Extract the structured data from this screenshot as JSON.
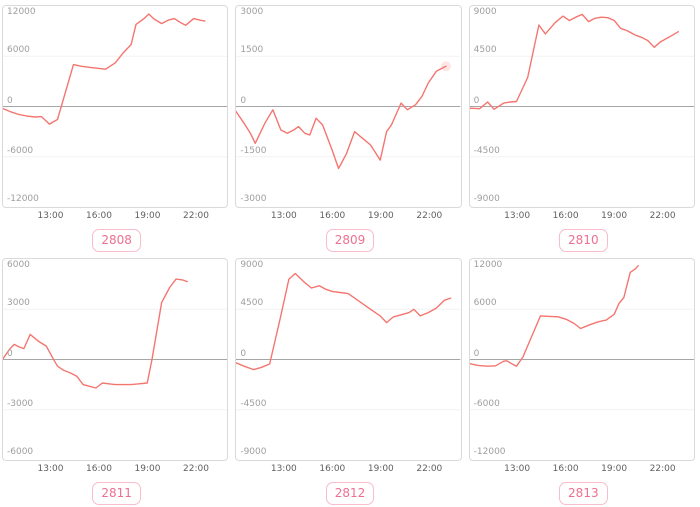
{
  "page": {
    "background": "#ffffff"
  },
  "style": {
    "line_color": "#f4756f",
    "grid_light": "#f2f2f2",
    "zero_line": "#a6a6a6",
    "box_border": "#dadada",
    "y_tick_color": "#9e9e9e",
    "x_tick_color": "#5f5f5f",
    "badge_text": "#ee7090",
    "badge_border": "#f8bcca"
  },
  "x_axis": {
    "range_hours": [
      10,
      24
    ],
    "tick_hours": [
      13,
      16,
      19,
      22
    ],
    "tick_labels": [
      "13:00",
      "16:00",
      "19:00",
      "22:00"
    ]
  },
  "chart_data": [
    {
      "type": "line",
      "label": "2808",
      "ylim": [
        -12000,
        12000
      ],
      "y_ticks": [
        12000,
        6000,
        0,
        -6000,
        -12000
      ],
      "x_ticks": [
        "13:00",
        "16:00",
        "19:00",
        "22:00"
      ],
      "grid": "horizontal-only",
      "legend": "none",
      "end_marker": false,
      "series": [
        {
          "name": "value",
          "points_hour_value": [
            [
              10,
              -250
            ],
            [
              10.5,
              -650
            ],
            [
              11,
              -950
            ],
            [
              11.5,
              -1150
            ],
            [
              12,
              -1250
            ],
            [
              12.4,
              -1200
            ],
            [
              12.9,
              -2100
            ],
            [
              13.4,
              -1550
            ],
            [
              14.4,
              5000
            ],
            [
              14.9,
              4800
            ],
            [
              15.5,
              4650
            ],
            [
              16,
              4550
            ],
            [
              16.4,
              4450
            ],
            [
              17,
              5200
            ],
            [
              17.5,
              6400
            ],
            [
              18,
              7400
            ],
            [
              18.3,
              9800
            ],
            [
              18.8,
              10500
            ],
            [
              19.1,
              11050
            ],
            [
              19.4,
              10500
            ],
            [
              19.9,
              9900
            ],
            [
              20.3,
              10300
            ],
            [
              20.7,
              10500
            ],
            [
              21.1,
              10000
            ],
            [
              21.4,
              9700
            ],
            [
              21.9,
              10500
            ],
            [
              22.3,
              10300
            ],
            [
              22.6,
              10200
            ]
          ]
        }
      ]
    },
    {
      "type": "line",
      "label": "2809",
      "ylim": [
        -3000,
        3000
      ],
      "y_ticks": [
        3000,
        1500,
        0,
        -1500,
        -3000
      ],
      "x_ticks": [
        "13:00",
        "16:00",
        "19:00",
        "22:00"
      ],
      "grid": "horizontal-only",
      "legend": "none",
      "end_marker": true,
      "series": [
        {
          "name": "value",
          "points_hour_value": [
            [
              10,
              -150
            ],
            [
              10.5,
              -500
            ],
            [
              10.9,
              -800
            ],
            [
              11.2,
              -1100
            ],
            [
              11.8,
              -500
            ],
            [
              12.3,
              -100
            ],
            [
              12.8,
              -700
            ],
            [
              13.2,
              -800
            ],
            [
              13.6,
              -700
            ],
            [
              13.9,
              -600
            ],
            [
              14.3,
              -800
            ],
            [
              14.6,
              -850
            ],
            [
              15,
              -350
            ],
            [
              15.4,
              -550
            ],
            [
              16,
              -1300
            ],
            [
              16.4,
              -1850
            ],
            [
              16.9,
              -1400
            ],
            [
              17.4,
              -750
            ],
            [
              17.9,
              -950
            ],
            [
              18.4,
              -1150
            ],
            [
              19,
              -1600
            ],
            [
              19.4,
              -750
            ],
            [
              19.7,
              -550
            ],
            [
              20.3,
              100
            ],
            [
              20.7,
              -100
            ],
            [
              21.2,
              50
            ],
            [
              21.6,
              300
            ],
            [
              22,
              700
            ],
            [
              22.5,
              1050
            ],
            [
              23.1,
              1200
            ]
          ]
        }
      ]
    },
    {
      "type": "line",
      "label": "2810",
      "ylim": [
        -9000,
        9000
      ],
      "y_ticks": [
        9000,
        4500,
        0,
        -4500,
        -9000
      ],
      "x_ticks": [
        "13:00",
        "16:00",
        "19:00",
        "22:00"
      ],
      "grid": "horizontal-only",
      "legend": "none",
      "end_marker": false,
      "series": [
        {
          "name": "value",
          "points_hour_value": [
            [
              10,
              -150
            ],
            [
              10.6,
              -200
            ],
            [
              11.1,
              400
            ],
            [
              11.5,
              -250
            ],
            [
              12.1,
              300
            ],
            [
              12.5,
              400
            ],
            [
              12.9,
              450
            ],
            [
              13.6,
              2600
            ],
            [
              14.3,
              7300
            ],
            [
              14.7,
              6500
            ],
            [
              15.3,
              7500
            ],
            [
              15.8,
              8100
            ],
            [
              16.2,
              7700
            ],
            [
              16.6,
              8000
            ],
            [
              17,
              8250
            ],
            [
              17.4,
              7600
            ],
            [
              17.8,
              7900
            ],
            [
              18.2,
              8000
            ],
            [
              18.6,
              7950
            ],
            [
              19,
              7700
            ],
            [
              19.4,
              7000
            ],
            [
              19.8,
              6800
            ],
            [
              20.3,
              6400
            ],
            [
              20.7,
              6200
            ],
            [
              21.1,
              5900
            ],
            [
              21.5,
              5300
            ],
            [
              21.9,
              5800
            ],
            [
              22.4,
              6200
            ],
            [
              23,
              6700
            ]
          ]
        }
      ]
    },
    {
      "type": "line",
      "label": "2811",
      "ylim": [
        -6000,
        6000
      ],
      "y_ticks": [
        6000,
        3000,
        0,
        -3000,
        -6000
      ],
      "x_ticks": [
        "13:00",
        "16:00",
        "19:00",
        "22:00"
      ],
      "grid": "horizontal-only",
      "legend": "none",
      "end_marker": false,
      "series": [
        {
          "name": "value",
          "points_hour_value": [
            [
              10,
              50
            ],
            [
              10.4,
              600
            ],
            [
              10.7,
              900
            ],
            [
              11,
              750
            ],
            [
              11.3,
              650
            ],
            [
              11.7,
              1500
            ],
            [
              12.2,
              1100
            ],
            [
              12.7,
              800
            ],
            [
              13.1,
              100
            ],
            [
              13.4,
              -400
            ],
            [
              13.8,
              -650
            ],
            [
              14.2,
              -800
            ],
            [
              14.6,
              -1000
            ],
            [
              15,
              -1500
            ],
            [
              15.4,
              -1600
            ],
            [
              15.8,
              -1700
            ],
            [
              16.2,
              -1400
            ],
            [
              16.6,
              -1450
            ],
            [
              17,
              -1500
            ],
            [
              17.5,
              -1500
            ],
            [
              18,
              -1500
            ],
            [
              18.5,
              -1450
            ],
            [
              19,
              -1400
            ],
            [
              19.3,
              0
            ],
            [
              19.9,
              3400
            ],
            [
              20.4,
              4300
            ],
            [
              20.8,
              4800
            ],
            [
              21.2,
              4750
            ],
            [
              21.5,
              4650
            ]
          ]
        }
      ]
    },
    {
      "type": "line",
      "label": "2812",
      "ylim": [
        -9000,
        9000
      ],
      "y_ticks": [
        9000,
        4500,
        0,
        -4500,
        -9000
      ],
      "x_ticks": [
        "13:00",
        "16:00",
        "19:00",
        "22:00"
      ],
      "grid": "horizontal-only",
      "legend": "none",
      "end_marker": false,
      "series": [
        {
          "name": "value",
          "points_hour_value": [
            [
              10,
              -300
            ],
            [
              10.5,
              -600
            ],
            [
              11.1,
              -900
            ],
            [
              11.6,
              -700
            ],
            [
              12.1,
              -400
            ],
            [
              12.7,
              3300
            ],
            [
              13.3,
              7200
            ],
            [
              13.7,
              7700
            ],
            [
              14.2,
              7000
            ],
            [
              14.7,
              6400
            ],
            [
              15.2,
              6600
            ],
            [
              15.6,
              6300
            ],
            [
              16,
              6100
            ],
            [
              16.5,
              6000
            ],
            [
              17,
              5900
            ],
            [
              17.5,
              5400
            ],
            [
              18,
              4900
            ],
            [
              18.5,
              4400
            ],
            [
              19,
              3900
            ],
            [
              19.4,
              3300
            ],
            [
              19.8,
              3800
            ],
            [
              20.3,
              4000
            ],
            [
              20.8,
              4200
            ],
            [
              21.1,
              4500
            ],
            [
              21.5,
              3900
            ],
            [
              22,
              4200
            ],
            [
              22.5,
              4600
            ],
            [
              23,
              5300
            ],
            [
              23.4,
              5500
            ]
          ]
        }
      ]
    },
    {
      "type": "line",
      "label": "2813",
      "ylim": [
        -12000,
        12000
      ],
      "y_ticks": [
        12000,
        6000,
        0,
        -6000,
        -12000
      ],
      "x_ticks": [
        "13:00",
        "16:00",
        "19:00",
        "22:00"
      ],
      "grid": "horizontal-only",
      "legend": "none",
      "end_marker": false,
      "series": [
        {
          "name": "value",
          "points_hour_value": [
            [
              10,
              -500
            ],
            [
              10.5,
              -700
            ],
            [
              11.1,
              -800
            ],
            [
              11.6,
              -750
            ],
            [
              12.1,
              -200
            ],
            [
              12.3,
              -150
            ],
            [
              12.6,
              -500
            ],
            [
              12.9,
              -800
            ],
            [
              13.3,
              300
            ],
            [
              14.4,
              5200
            ],
            [
              15,
              5150
            ],
            [
              15.5,
              5100
            ],
            [
              16,
              4800
            ],
            [
              16.5,
              4300
            ],
            [
              16.9,
              3700
            ],
            [
              17.4,
              4100
            ],
            [
              18,
              4500
            ],
            [
              18.5,
              4700
            ],
            [
              19,
              5400
            ],
            [
              19.3,
              6700
            ],
            [
              19.6,
              7400
            ],
            [
              20,
              10400
            ],
            [
              20.3,
              10800
            ],
            [
              20.5,
              11200
            ]
          ]
        }
      ]
    }
  ]
}
